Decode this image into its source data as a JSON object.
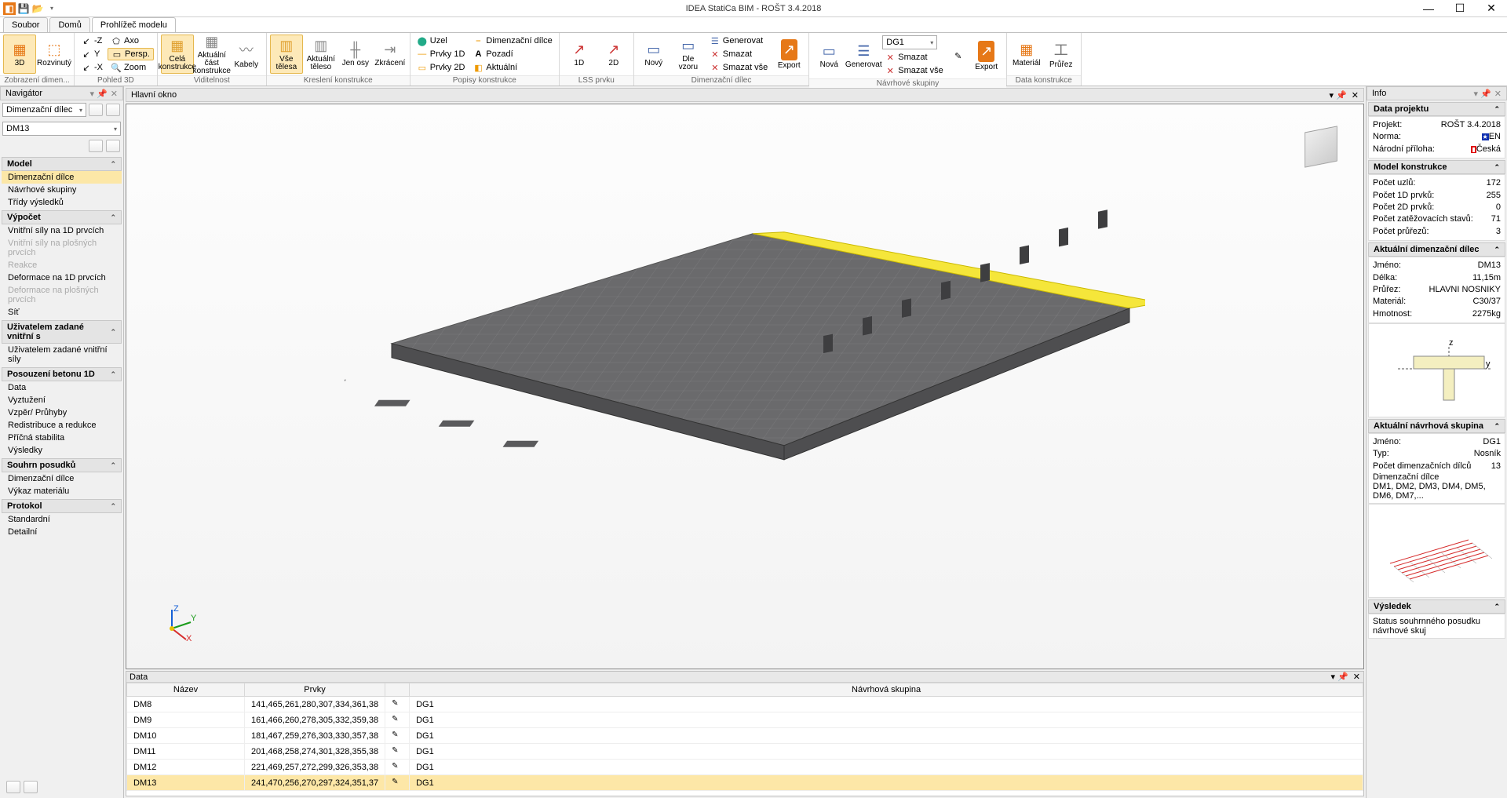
{
  "app_title": "IDEA StatiCa BIM - ROŠT 3.4.2018",
  "tabs": {
    "t1": "Soubor",
    "t2": "Domů",
    "t3": "Prohlížeč modelu"
  },
  "ribbon": {
    "g1": {
      "label": "Zobrazení dimen...",
      "b1": "3D",
      "b2": "Rozvinutý"
    },
    "g2": {
      "label": "Pohled 3D",
      "s1": "-Z",
      "s2": "Axo",
      "s3": "Y",
      "s4": "Persp.",
      "s5": "-X",
      "s6": "Zoom"
    },
    "g3": {
      "label": "Viditelnost",
      "b1": "Celá\nkonstrukce",
      "b2": "Aktuální část\nkonstrukce",
      "b3": "Kabely"
    },
    "g4": {
      "label": "Kreslení konstrukce",
      "b1": "Vše\ntělesa",
      "b2": "Aktuální\ntěleso",
      "b3": "Jen\nosy",
      "b4": "Zkrácení"
    },
    "g5": {
      "label": "Popisy konstrukce",
      "s1": "Uzel",
      "s2": "Prvky 1D",
      "s3": "Prvky 2D",
      "s4": "Dimenzační dílce",
      "s5": "Pozadí",
      "s6": "Aktuální"
    },
    "g6": {
      "label": "LSS prvku",
      "b1": "1D",
      "b2": "2D"
    },
    "g7": {
      "label": "Dimenzační dílec",
      "b1": "Nový",
      "b2": "Dle\nvzoru",
      "s1": "Generovat",
      "s2": "Smazat",
      "s3": "Smazat vše",
      "b3": "Export"
    },
    "g8": {
      "label": "Návrhové skupiny",
      "b1": "Nová",
      "b2": "Generovat",
      "combo": "DG1",
      "s1": "Smazat",
      "s2": "Smazat vše",
      "b3": "Export"
    },
    "g9": {
      "label": "Data konstrukce",
      "b1": "Materiál",
      "b2": "Průřez"
    }
  },
  "nav": {
    "title": "Navigátor",
    "combo1": "Dimenzační dílec",
    "combo2": "DM13",
    "sections": {
      "model": {
        "hdr": "Model",
        "items": [
          "Dimenzační dílce",
          "Návrhové skupiny",
          "Třídy výsledků"
        ]
      },
      "vypocet": {
        "hdr": "Výpočet",
        "items": [
          "Vnitřní síly na 1D prvcích",
          "Vnitřní síly na plošných prvcích",
          "Reakce",
          "Deformace na 1D prvcích",
          "Deformace na plošných prvcích",
          "Síť"
        ]
      },
      "uziv": {
        "hdr": "Uživatelem zadané vnitřní s",
        "items": [
          "Uživatelem zadané vnitřní síly"
        ]
      },
      "posouzeni": {
        "hdr": "Posouzení betonu 1D",
        "items": [
          "Data",
          "Vyztužení",
          "Vzpěr/ Průhyby",
          "Redistribuce a redukce",
          "Příčná stabilita",
          "Výsledky"
        ]
      },
      "souhrn": {
        "hdr": "Souhrn posudků",
        "items": [
          "Dimenzační dílce",
          "Výkaz materiálu"
        ]
      },
      "protokol": {
        "hdr": "Protokol",
        "items": [
          "Standardní",
          "Detailní"
        ]
      }
    }
  },
  "view_title": "Hlavní okno",
  "data_panel": {
    "title": "Data",
    "cols": [
      "Název",
      "Prvky",
      "",
      "Návrhová skupina"
    ],
    "rows": [
      {
        "n": "DM8",
        "p": "141,465,261,280,307,334,361,38",
        "g": "DG1"
      },
      {
        "n": "DM9",
        "p": "161,466,260,278,305,332,359,38",
        "g": "DG1"
      },
      {
        "n": "DM10",
        "p": "181,467,259,276,303,330,357,38",
        "g": "DG1"
      },
      {
        "n": "DM11",
        "p": "201,468,258,274,301,328,355,38",
        "g": "DG1"
      },
      {
        "n": "DM12",
        "p": "221,469,257,272,299,326,353,38",
        "g": "DG1"
      },
      {
        "n": "DM13",
        "p": "241,470,256,270,297,324,351,37",
        "g": "DG1"
      }
    ]
  },
  "info": {
    "title": "Info",
    "proj": {
      "hdr": "Data projektu",
      "r1k": "Projekt:",
      "r1v": "ROŠT 3.4.2018",
      "r2k": "Norma:",
      "r2v": "EN",
      "r3k": "Národní příloha:",
      "r3v": "Česká"
    },
    "model": {
      "hdr": "Model konstrukce",
      "r1k": "Počet uzlů:",
      "r1v": "172",
      "r2k": "Počet 1D prvků:",
      "r2v": "255",
      "r3k": "Počet 2D prvků:",
      "r3v": "0",
      "r4k": "Počet zatěžovacích stavů:",
      "r4v": "71",
      "r5k": "Počet průřezů:",
      "r5v": "3"
    },
    "dilec": {
      "hdr": "Aktuální dimenzační dílec",
      "r1k": "Jméno:",
      "r1v": "DM13",
      "r2k": "Délka:",
      "r2v": "11,15m",
      "r3k": "Průřez:",
      "r3v": "HLAVNI NOSNIKY",
      "r4k": "Materiál:",
      "r4v": "C30/37",
      "r5k": "Hmotnost:",
      "r5v": "2275kg"
    },
    "skupina": {
      "hdr": "Aktuální návrhová skupina",
      "r1k": "Jméno:",
      "r1v": "DG1",
      "r2k": "Typ:",
      "r2v": "Nosník",
      "r3k": "Počet dimenzačních dílců",
      "r3v": "13",
      "r4": "Dimenzační dílce",
      "r5": "DM1, DM2, DM3, DM4, DM5, DM6, DM7,..."
    },
    "vysledek": {
      "hdr": "Výsledek",
      "txt": "Status souhrnného posudku návrhové skuj"
    }
  }
}
